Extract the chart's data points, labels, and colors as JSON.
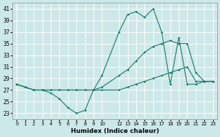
{
  "xlabel": "Humidex (Indice chaleur)",
  "background_color": "#cce8e8",
  "grid_color": "#ffffff",
  "line_color": "#1a7a6e",
  "ylim": [
    22,
    42
  ],
  "yticks": [
    23,
    25,
    27,
    29,
    31,
    33,
    35,
    37,
    39,
    41
  ],
  "xlim": [
    -0.5,
    23.5
  ],
  "xticks": [
    0,
    1,
    2,
    3,
    4,
    5,
    6,
    7,
    8,
    9,
    10,
    12,
    13,
    14,
    15,
    16,
    17,
    18,
    19,
    20,
    21,
    22,
    23
  ],
  "series": [
    {
      "x": [
        0,
        1,
        2,
        3,
        4,
        5,
        6,
        7,
        8,
        9,
        10,
        12,
        13,
        14,
        15,
        16,
        17,
        18,
        19,
        20,
        21,
        22,
        23
      ],
      "y": [
        28,
        27.5,
        27,
        27,
        26.5,
        25.5,
        24,
        23,
        23.5,
        27,
        29.5,
        37,
        40,
        40.5,
        39.5,
        41,
        37,
        28,
        36,
        28,
        28,
        28.5,
        28.5
      ]
    },
    {
      "x": [
        0,
        1,
        2,
        3,
        4,
        5,
        6,
        7,
        8,
        9,
        10,
        12,
        13,
        14,
        15,
        16,
        17,
        18,
        19,
        20,
        21,
        22,
        23
      ],
      "y": [
        28,
        27.5,
        27,
        27,
        27,
        27,
        27,
        27,
        27,
        27,
        27,
        27,
        27.5,
        28,
        28.5,
        29,
        29.5,
        30,
        30.5,
        31,
        28.5,
        28.5,
        28.5
      ]
    },
    {
      "x": [
        0,
        1,
        2,
        3,
        4,
        5,
        6,
        7,
        8,
        9,
        10,
        12,
        13,
        14,
        15,
        16,
        17,
        18,
        19,
        20,
        21,
        22,
        23
      ],
      "y": [
        28,
        27.5,
        27,
        27,
        27,
        27,
        27,
        27,
        27,
        27,
        27.5,
        29.5,
        30.5,
        32,
        33.5,
        34.5,
        35,
        35.5,
        35,
        35,
        30,
        28.5,
        28.5
      ]
    }
  ]
}
